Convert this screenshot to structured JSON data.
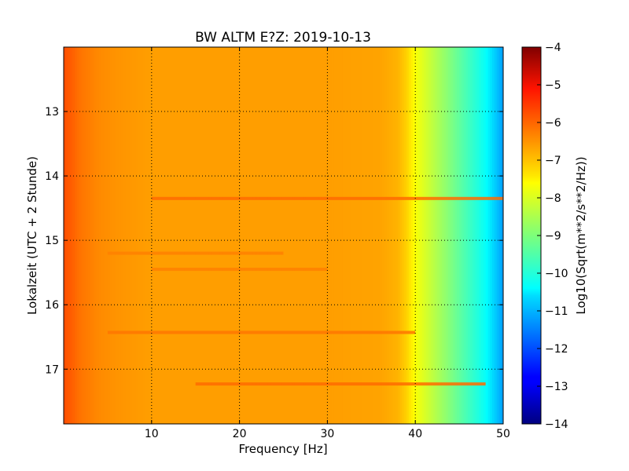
{
  "chart_data": {
    "type": "heatmap",
    "title": "BW ALTM E?Z: 2019-10-13",
    "xlabel": "Frequency [Hz]",
    "ylabel": "Lokalzeit (UTC + 2 Stunde)",
    "colorbar_label": "Log10(Sqrt(m**2/s**2/Hz))",
    "xlim": [
      0,
      50
    ],
    "ylim": [
      17.85,
      12.0
    ],
    "clim": [
      -14,
      -4
    ],
    "colormap": "jet",
    "grid": true,
    "x_ticks": [
      {
        "value": 10,
        "label": "10"
      },
      {
        "value": 20,
        "label": "20"
      },
      {
        "value": 30,
        "label": "30"
      },
      {
        "value": 40,
        "label": "40"
      },
      {
        "value": 50,
        "label": "50"
      }
    ],
    "y_ticks": [
      {
        "value": 13,
        "label": "13"
      },
      {
        "value": 14,
        "label": "14"
      },
      {
        "value": 15,
        "label": "15"
      },
      {
        "value": 16,
        "label": "16"
      },
      {
        "value": 17,
        "label": "17"
      }
    ],
    "colorbar_ticks": [
      {
        "value": -4,
        "label": "−4"
      },
      {
        "value": -5,
        "label": "−5"
      },
      {
        "value": -6,
        "label": "−6"
      },
      {
        "value": -7,
        "label": "−7"
      },
      {
        "value": -8,
        "label": "−8"
      },
      {
        "value": -9,
        "label": "−9"
      },
      {
        "value": -10,
        "label": "−10"
      },
      {
        "value": -11,
        "label": "−11"
      },
      {
        "value": -12,
        "label": "−12"
      },
      {
        "value": -13,
        "label": "−13"
      },
      {
        "value": -14,
        "label": "−14"
      }
    ],
    "frequency_profile": {
      "frequency_hz": [
        0,
        1,
        2,
        3,
        4,
        6,
        10,
        20,
        30,
        36,
        38,
        39,
        40,
        41,
        42,
        44,
        46,
        48,
        49,
        50
      ],
      "value": [
        -6.0,
        -6.2,
        -6.4,
        -6.5,
        -6.6,
        -6.7,
        -6.8,
        -6.8,
        -6.8,
        -6.85,
        -7.0,
        -7.3,
        -7.8,
        -8.1,
        -8.4,
        -9.0,
        -9.6,
        -10.2,
        -10.7,
        -11.2
      ]
    },
    "bands": [
      {
        "time": 14.35,
        "freq_range": [
          10,
          50
        ],
        "value": -6.3
      },
      {
        "time": 15.2,
        "freq_range": [
          5,
          25
        ],
        "value": -6.5
      },
      {
        "time": 15.45,
        "freq_range": [
          10,
          30
        ],
        "value": -6.5
      },
      {
        "time": 16.43,
        "freq_range": [
          5,
          40
        ],
        "value": -6.4
      },
      {
        "time": 17.23,
        "freq_range": [
          15,
          48
        ],
        "value": -6.3
      }
    ]
  }
}
